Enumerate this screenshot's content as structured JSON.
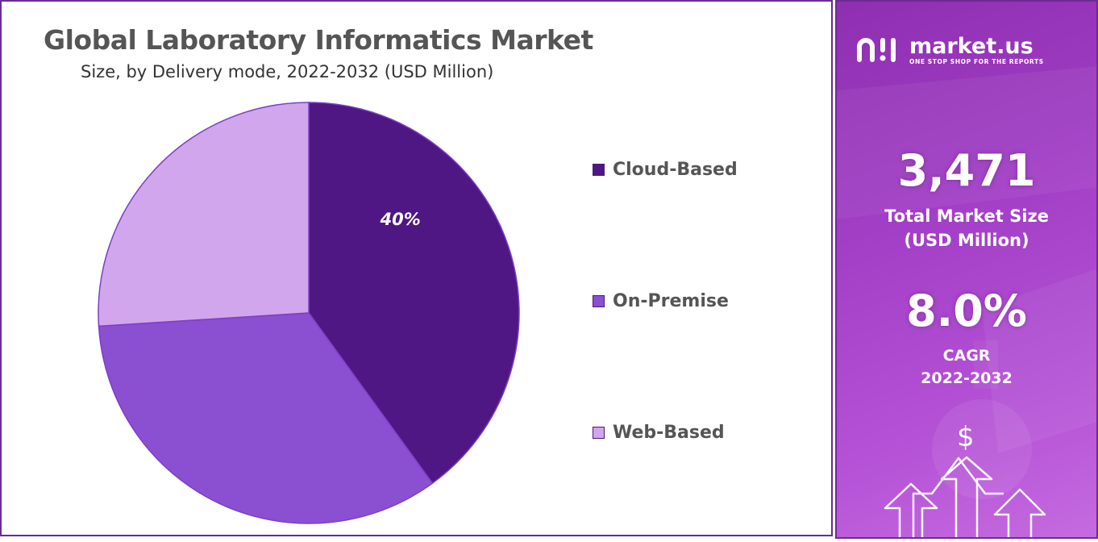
{
  "chart_data": {
    "type": "pie",
    "title": "Global Laboratory Informatics Market",
    "subtitle": "Size, by Delivery mode, 2022-2032 (USD Million)",
    "slices": [
      {
        "name": "Cloud-Based",
        "value": 40,
        "label": "40%",
        "color": "#4f1784"
      },
      {
        "name": "On-Premise",
        "value": 34,
        "label": "",
        "color": "#8b4fd1"
      },
      {
        "name": "Web-Based",
        "value": 26,
        "label": "",
        "color": "#d1a6ec"
      }
    ],
    "legend_position": "right"
  },
  "sidebar": {
    "brand": {
      "name": "market.us",
      "tagline": "ONE STOP SHOP FOR THE REPORTS"
    },
    "market_size": {
      "value": "3,471",
      "label_line1": "Total Market Size",
      "label_line2": "(USD Million)"
    },
    "cagr": {
      "value": "8.0%",
      "label_line1": "CAGR",
      "label_line2": "2022-2032"
    },
    "currency_symbol": "$"
  },
  "colors": {
    "frame": "#6a2c91",
    "panel_start": "#8e2fb1",
    "panel_end": "#c56be0"
  }
}
